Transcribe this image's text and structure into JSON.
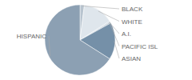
{
  "chart_data": {
    "type": "pie",
    "categories": [
      "BLACK",
      "WHITE",
      "A.I.",
      "PACIFIC ISL",
      "ASIAN",
      "HISPANIC"
    ],
    "values": [
      2,
      14,
      0.5,
      0.5,
      17,
      66
    ],
    "colors": [
      "#b8c4cf",
      "#dfe6ec",
      "#c9d3dc",
      "#a8b7c5",
      "#7590a8",
      "#8ca0b3"
    ]
  }
}
